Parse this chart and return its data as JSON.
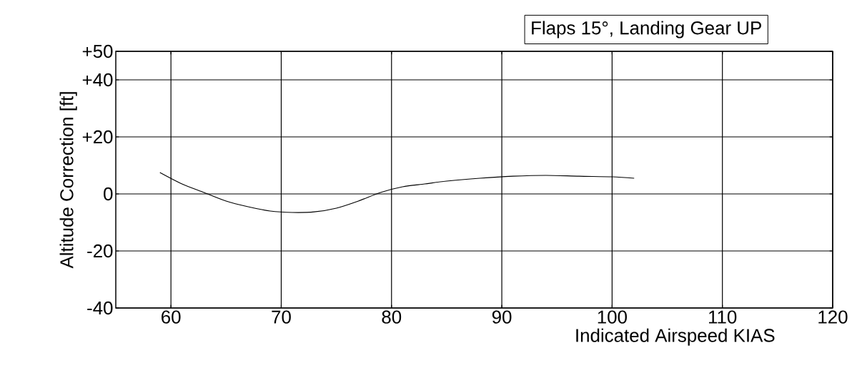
{
  "chart_data": {
    "type": "line",
    "title": "Flaps 15°, Landing Gear UP",
    "xlabel": "Indicated Airspeed  KIAS",
    "ylabel": "Altitude Correction  [ft]",
    "x": [
      59,
      61,
      63,
      65,
      67,
      69,
      71,
      73,
      75,
      77,
      79,
      81,
      83,
      85,
      88,
      91,
      94,
      97,
      100,
      102
    ],
    "series": [
      {
        "color": "#000000",
        "values": [
          7.5,
          3.5,
          0.5,
          -2.5,
          -4.5,
          -6,
          -6.5,
          -6.3,
          -5,
          -2.5,
          0.5,
          2.5,
          3.5,
          4.5,
          5.5,
          6.2,
          6.5,
          6.2,
          6,
          5.5
        ]
      }
    ],
    "xlim": [
      55,
      120
    ],
    "ylim": [
      -40,
      50
    ],
    "xticks": [
      60,
      70,
      80,
      90,
      100,
      110,
      120
    ],
    "yticks": [
      -40,
      -20,
      0,
      {
        "value": 20,
        "label": "+20"
      },
      {
        "value": 40,
        "label": "+40"
      },
      {
        "value": 50,
        "label": "+50"
      }
    ],
    "grid": true,
    "marker": "none",
    "line_style": "solid"
  }
}
